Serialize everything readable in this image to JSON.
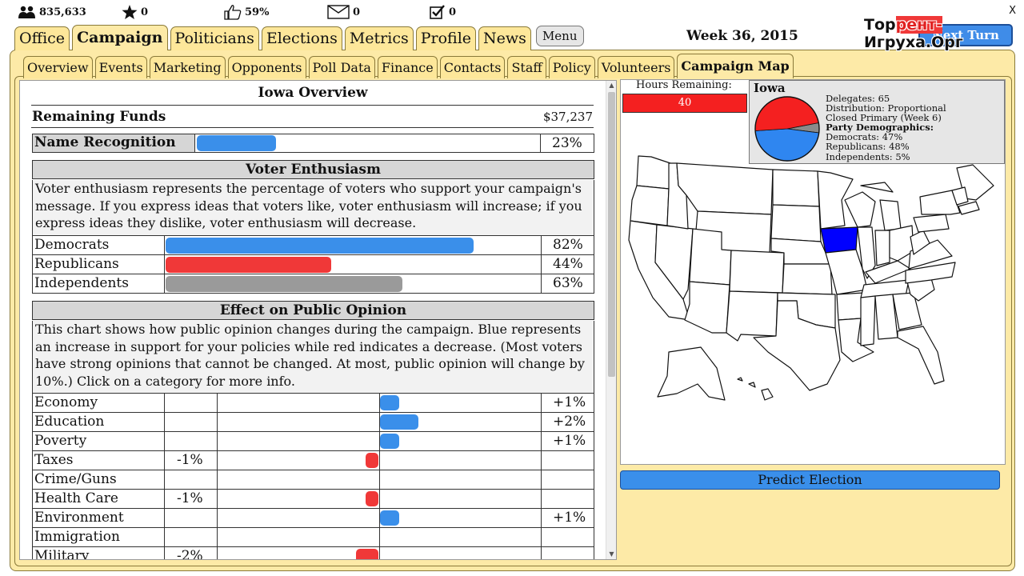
{
  "top_stats": {
    "followers": "835,633",
    "stars": "0",
    "approval": "59%",
    "messages": "0",
    "tasks": "0"
  },
  "window": {
    "close_label": "X"
  },
  "main_tabs": [
    "Office",
    "Campaign",
    "Politicians",
    "Elections",
    "Metrics",
    "Profile",
    "News"
  ],
  "menu_label": "Menu",
  "week_label": "Week 36, 2015",
  "next_turn_label": "Next Turn",
  "watermark": {
    "part1": "Тор",
    "part2": "рент-",
    "part3": "Игруха.Орг"
  },
  "sub_tabs": [
    "Overview",
    "Events",
    "Marketing",
    "Opponents",
    "Poll Data",
    "Finance",
    "Contacts",
    "Staff",
    "Policy",
    "Volunteers",
    "Campaign Map"
  ],
  "overview": {
    "title": "Iowa Overview",
    "funds_label": "Remaining Funds",
    "funds_value": "$37,237",
    "recognition_label": "Name Recognition",
    "recognition_value": "23%",
    "recognition_fraction": 0.23
  },
  "enthusiasm": {
    "title": "Voter Enthusiasm",
    "description": "Voter enthusiasm represents the percentage of voters who support your campaign's message. If you express ideas that voters like, voter enthusiasm will increase; if you express ideas they dislike, voter enthusiasm will decrease.",
    "rows": [
      {
        "label": "Democrats",
        "value": "82%",
        "fraction": 0.82,
        "color": "#3a8fea"
      },
      {
        "label": "Republicans",
        "value": "44%",
        "fraction": 0.44,
        "color": "#f03838"
      },
      {
        "label": "Independents",
        "value": "63%",
        "fraction": 0.63,
        "color": "#9a9a9a"
      }
    ]
  },
  "opinion": {
    "title": "Effect on Public Opinion",
    "description": "This chart shows how public opinion changes during the campaign. Blue represents an increase in support for your policies while red indicates a decrease. (Most voters have strong opinions that cannot be changed. At most, public opinion will change by 10%.) Click on a category for more info.",
    "rows": [
      {
        "label": "Economy",
        "neg": "",
        "pos": "+1%",
        "change": 1
      },
      {
        "label": "Education",
        "neg": "",
        "pos": "+2%",
        "change": 2
      },
      {
        "label": "Poverty",
        "neg": "",
        "pos": "+1%",
        "change": 1
      },
      {
        "label": "Taxes",
        "neg": "-1%",
        "pos": "",
        "change": -1
      },
      {
        "label": "Crime/Guns",
        "neg": "",
        "pos": "",
        "change": 0
      },
      {
        "label": "Health Care",
        "neg": "-1%",
        "pos": "",
        "change": -1
      },
      {
        "label": "Environment",
        "neg": "",
        "pos": "+1%",
        "change": 1
      },
      {
        "label": "Immigration",
        "neg": "",
        "pos": "",
        "change": 0
      },
      {
        "label": "Military",
        "neg": "-2%",
        "pos": "",
        "change": -2
      }
    ]
  },
  "map": {
    "hours_label": "Hours Remaining:",
    "hours_value": "40",
    "state": {
      "name": "Iowa",
      "delegates": "Delegates: 65",
      "distribution": "Distribution: Proportional",
      "primary": "Closed Primary (Week 6)",
      "demographics_label": "Party Demographics:",
      "democrats": "Democrats: 47%",
      "republicans": "Republicans: 48%",
      "independents": "Independents: 5%",
      "pie": [
        {
          "party": "Democrats",
          "share": 47,
          "color": "#2f86f0"
        },
        {
          "party": "Republicans",
          "share": 48,
          "color": "#f42020"
        },
        {
          "party": "Independents",
          "share": 5,
          "color": "#8a8a8a"
        }
      ]
    },
    "highlight_color": "#0000ff"
  },
  "predict_label": "Predict Election"
}
